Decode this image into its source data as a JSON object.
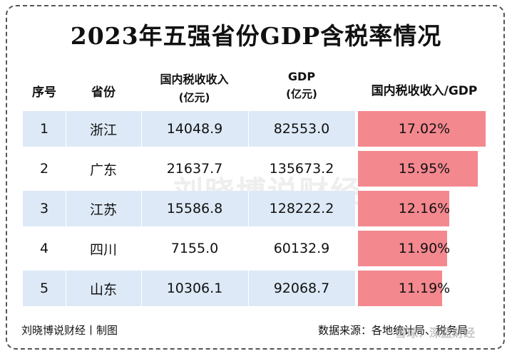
{
  "title": "2023年五强省份GDP含税率情况",
  "headers": {
    "rank": "序号",
    "province": "省份",
    "tax": "国内税收收入",
    "tax_unit": "(亿元)",
    "gdp": "GDP",
    "gdp_unit": "(亿元)",
    "ratio": "国内税收收入/GDP"
  },
  "rows": [
    {
      "rank": "1",
      "province": "浙江",
      "tax": "14048.9",
      "gdp": "82553.0",
      "ratio_label": "17.02%"
    },
    {
      "rank": "2",
      "province": "广东",
      "tax": "21637.7",
      "gdp": "135673.2",
      "ratio_label": "15.95%"
    },
    {
      "rank": "3",
      "province": "江苏",
      "tax": "15586.8",
      "gdp": "128222.2",
      "ratio_label": "12.16%"
    },
    {
      "rank": "4",
      "province": "四川",
      "tax": "7155.0",
      "gdp": "60132.9",
      "ratio_label": "11.90%"
    },
    {
      "rank": "5",
      "province": "山东",
      "tax": "10306.1",
      "gdp": "92068.7",
      "ratio_label": "11.19%"
    }
  ],
  "watermark": "刘晓博说财经",
  "footer": {
    "credit": "刘晓博说财经丨制图",
    "source": "数据来源：各地统计局、税务局"
  },
  "xueqiu_watermark": "雪球：深蓝财经",
  "colors": {
    "row_band": "#dde9f6",
    "bar": "#f4888f"
  },
  "chart_data": {
    "type": "table",
    "title": "2023年五强省份GDP含税率情况",
    "columns": [
      "序号",
      "省份",
      "国内税收收入(亿元)",
      "GDP(亿元)",
      "国内税收收入/GDP"
    ],
    "categories": [
      "浙江",
      "广东",
      "江苏",
      "四川",
      "山东"
    ],
    "series": [
      {
        "name": "国内税收收入",
        "values": [
          14048.9,
          21637.7,
          15586.8,
          7155.0,
          10306.1
        ]
      },
      {
        "name": "GDP",
        "values": [
          82553.0,
          135673.2,
          128222.2,
          60132.9,
          92068.7
        ]
      },
      {
        "name": "国内税收收入/GDP",
        "values": [
          17.02,
          15.95,
          12.16,
          11.9,
          11.19
        ]
      }
    ],
    "bar_column": "国内税收收入/GDP",
    "bar_range": [
      0,
      17.5
    ]
  }
}
